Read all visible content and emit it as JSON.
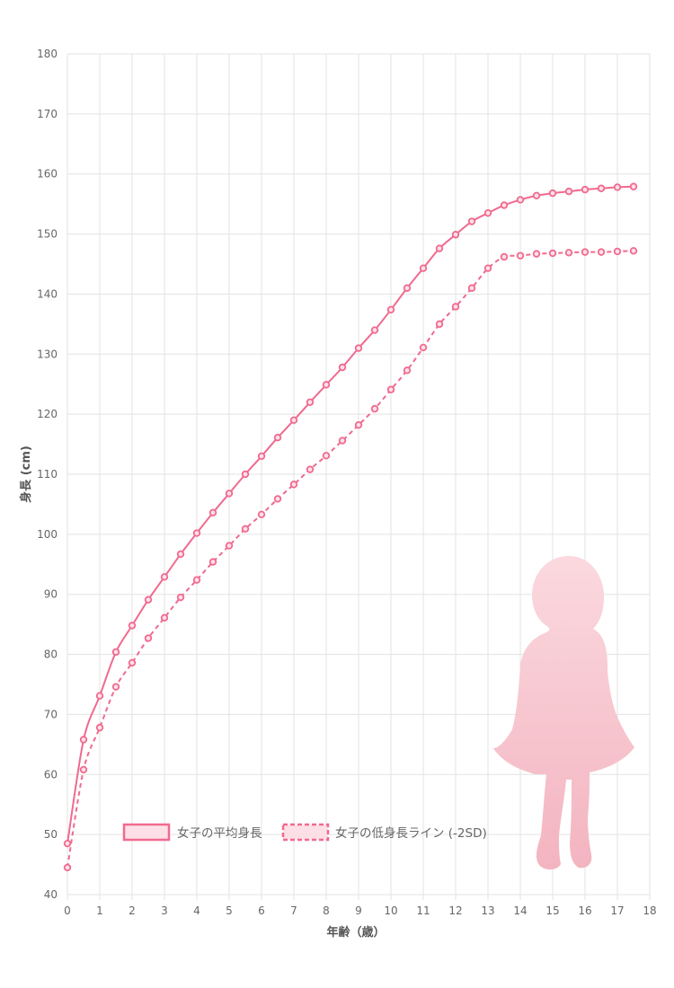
{
  "chart_data": {
    "type": "line",
    "xlabel": "年齢（歳）",
    "ylabel": "身長 (cm)",
    "xlim": [
      0,
      18
    ],
    "ylim": [
      40,
      180
    ],
    "x_ticks": [
      0,
      1,
      2,
      3,
      4,
      5,
      6,
      7,
      8,
      9,
      10,
      11,
      12,
      13,
      14,
      15,
      16,
      17,
      18
    ],
    "y_ticks": [
      40,
      50,
      60,
      70,
      80,
      90,
      100,
      110,
      120,
      130,
      140,
      150,
      160,
      170,
      180
    ],
    "grid": true,
    "legend_position": "bottom-center",
    "x": [
      0,
      0.5,
      1,
      1.5,
      2,
      2.5,
      3,
      3.5,
      4,
      4.5,
      5,
      5.5,
      6,
      6.5,
      7,
      7.5,
      8,
      8.5,
      9,
      9.5,
      10,
      10.5,
      11,
      11.5,
      12,
      12.5,
      13,
      13.5,
      14,
      14.5,
      15,
      15.5,
      16,
      16.5,
      17,
      17.5
    ],
    "series": [
      {
        "name": "女子の平均身長",
        "style": "solid",
        "color": "#f06a8f",
        "values": [
          48.5,
          65.8,
          73.1,
          80.4,
          84.8,
          89.1,
          92.9,
          96.7,
          100.2,
          103.6,
          106.8,
          110.0,
          113.0,
          116.1,
          119.0,
          122.0,
          124.9,
          127.8,
          131.0,
          134.0,
          137.4,
          141.0,
          144.3,
          147.6,
          149.9,
          152.1,
          153.5,
          154.8,
          155.7,
          156.4,
          156.8,
          157.1,
          157.4,
          157.6,
          157.8,
          157.9
        ]
      },
      {
        "name": "女子の低身長ライン (-2SD)",
        "style": "dashed",
        "color": "#f06a8f",
        "values": [
          44.5,
          60.8,
          67.8,
          74.6,
          78.6,
          82.7,
          86.1,
          89.5,
          92.4,
          95.4,
          98.1,
          100.9,
          103.3,
          105.9,
          108.3,
          110.8,
          113.1,
          115.6,
          118.2,
          120.9,
          124.1,
          127.3,
          131.1,
          135.0,
          137.9,
          141.0,
          144.3,
          146.2,
          146.4,
          146.7,
          146.8,
          146.9,
          147.0,
          147.0,
          147.1,
          147.2
        ]
      }
    ]
  },
  "colors": {
    "line": "#f06a8f",
    "fill": "#fde0e7",
    "grid": "#e3e3e3",
    "silhouette_top": "#fbd9df",
    "silhouette_bottom": "#f3b4c0"
  },
  "decoration": {
    "silhouette_icon": "girl-silhouette-icon"
  }
}
